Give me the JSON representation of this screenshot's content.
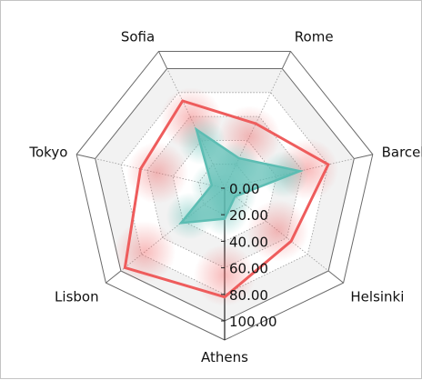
{
  "chart_data": {
    "type": "radar",
    "categories": [
      "Athens",
      "Lisbon",
      "Tokyo",
      "Sofia",
      "Rome",
      "Barcelona",
      "Helsinki"
    ],
    "ticks": [
      "0.00",
      "20.00",
      "40.00",
      "60.00",
      "80.00",
      "100.00"
    ],
    "range": [
      0,
      100
    ],
    "gridlines": true,
    "series": [
      {
        "values": [
          82,
          96,
          65,
          73,
          54,
          80,
          64
        ],
        "color": "#ee5c5c"
      },
      {
        "values": [
          23,
          42,
          10,
          49,
          25,
          58,
          10
        ],
        "color": "#5cbdb3"
      }
    ]
  }
}
